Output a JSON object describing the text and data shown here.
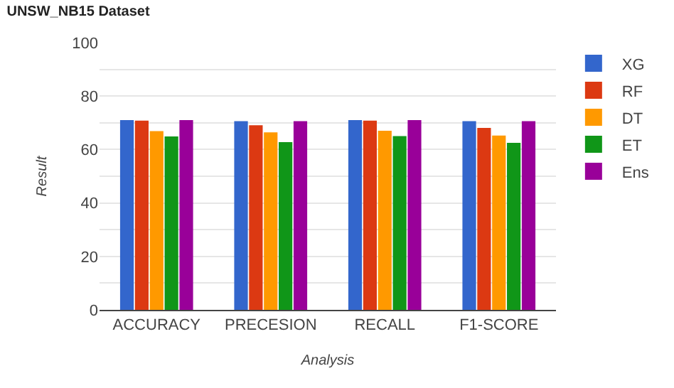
{
  "chart_data": {
    "type": "bar",
    "title": "UNSW_NB15 Dataset",
    "xlabel": "Analysis",
    "ylabel": "Result",
    "categories": [
      "ACCURACY",
      "PRECESION",
      "RECALL",
      "F1-SCORE"
    ],
    "series": [
      {
        "name": "XG",
        "color": "#3366cc",
        "values": [
          71,
          70.6,
          71,
          70.6
        ]
      },
      {
        "name": "RF",
        "color": "#dc3912",
        "values": [
          70.8,
          69.1,
          70.8,
          68.1
        ]
      },
      {
        "name": "DT",
        "color": "#ff9900",
        "values": [
          66.9,
          66.4,
          67,
          65.2
        ]
      },
      {
        "name": "ET",
        "color": "#109618",
        "values": [
          64.9,
          62.8,
          65,
          62.5
        ]
      },
      {
        "name": "Ens",
        "color": "#990099",
        "values": [
          71,
          70.6,
          71,
          70.6
        ]
      }
    ],
    "ylim": [
      0,
      100
    ],
    "yticks": [
      0,
      {
        "value": 10,
        "label": null
      },
      20,
      {
        "value": 30,
        "label": null
      },
      40,
      {
        "value": 50,
        "label": null
      },
      60,
      {
        "value": 70,
        "label": null
      },
      80,
      {
        "value": 90,
        "label": null
      },
      100
    ],
    "grid": "y",
    "legend": "top right"
  }
}
